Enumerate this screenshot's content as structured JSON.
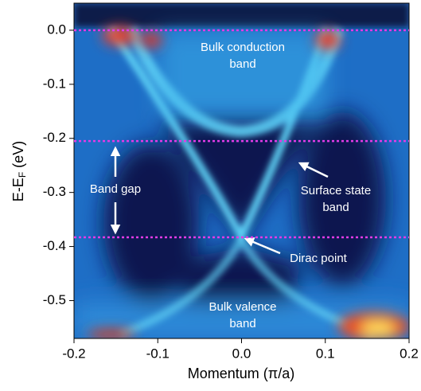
{
  "chart_data": {
    "type": "image",
    "xlabel": "Momentum (π/a)",
    "ylabel_parts": [
      "E-E",
      "F",
      " (eV)"
    ],
    "xlim": [
      -0.2,
      0.2
    ],
    "ylim": [
      -0.57,
      0.05
    ],
    "xticks": [
      -0.2,
      -0.1,
      {
        "value": 0,
        "label": "0.0"
      },
      0.1,
      0.2
    ],
    "yticks": [
      {
        "value": 0,
        "label": "0.0"
      },
      -0.1,
      -0.2,
      -0.3,
      -0.4,
      -0.5
    ],
    "hlines": [
      0,
      -0.205,
      -0.383
    ],
    "hline_color": "#e23be6",
    "annotations": {
      "conduction": [
        "Bulk conduction",
        "band"
      ],
      "gap": [
        "Band gap"
      ],
      "surface": [
        "Surface state",
        "band"
      ],
      "dirac": [
        "Dirac point"
      ],
      "valence": [
        "Bulk valence",
        "band"
      ]
    }
  }
}
